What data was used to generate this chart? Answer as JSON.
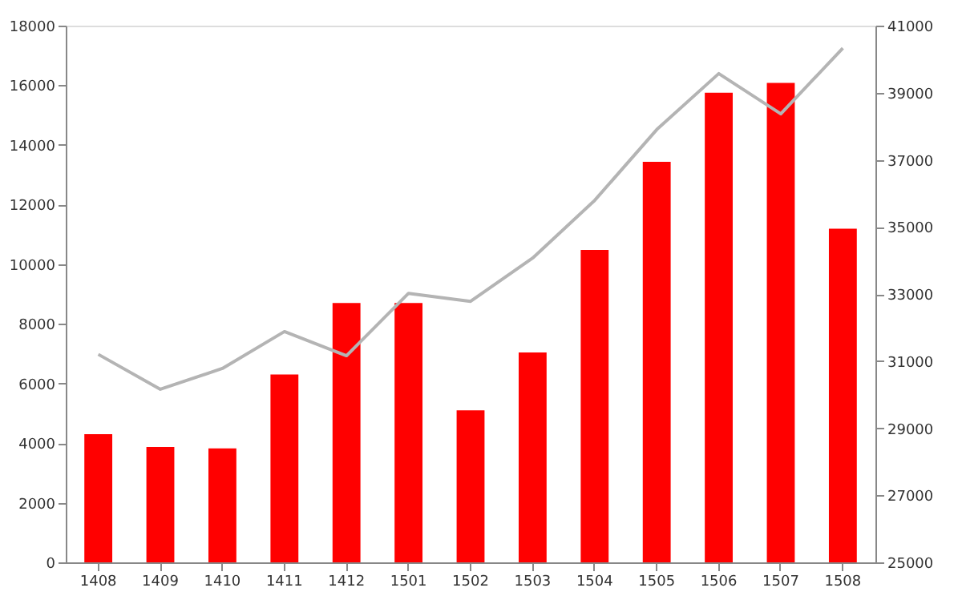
{
  "chart_data": {
    "type": "bar",
    "categories": [
      "1408",
      "1409",
      "1410",
      "1411",
      "1412",
      "1501",
      "1502",
      "1503",
      "1504",
      "1505",
      "1506",
      "1507",
      "1508"
    ],
    "series": [
      {
        "color": "#ff0000",
        "values": [
          4300,
          3870,
          3820,
          6300,
          8700,
          8700,
          5100,
          7040,
          10480,
          13430,
          15750,
          16080,
          11190
        ]
      },
      {
        "type": "line",
        "axis": "y2",
        "color": "#b4b4b4",
        "values": [
          31200,
          30160,
          30780,
          31880,
          31160,
          33020,
          32780,
          34070,
          35790,
          37900,
          39570,
          38370,
          40330
        ]
      }
    ],
    "ylim": [
      0,
      18000
    ],
    "yticks": [
      0,
      2000,
      4000,
      6000,
      8000,
      10000,
      12000,
      14000,
      16000,
      18000
    ],
    "y2lim": [
      25000,
      41000
    ],
    "y2ticks": [
      25000,
      27000,
      29000,
      31000,
      33000,
      35000,
      37000,
      39000,
      41000
    ],
    "grid": false,
    "marker": "none",
    "line_style": "solid"
  }
}
